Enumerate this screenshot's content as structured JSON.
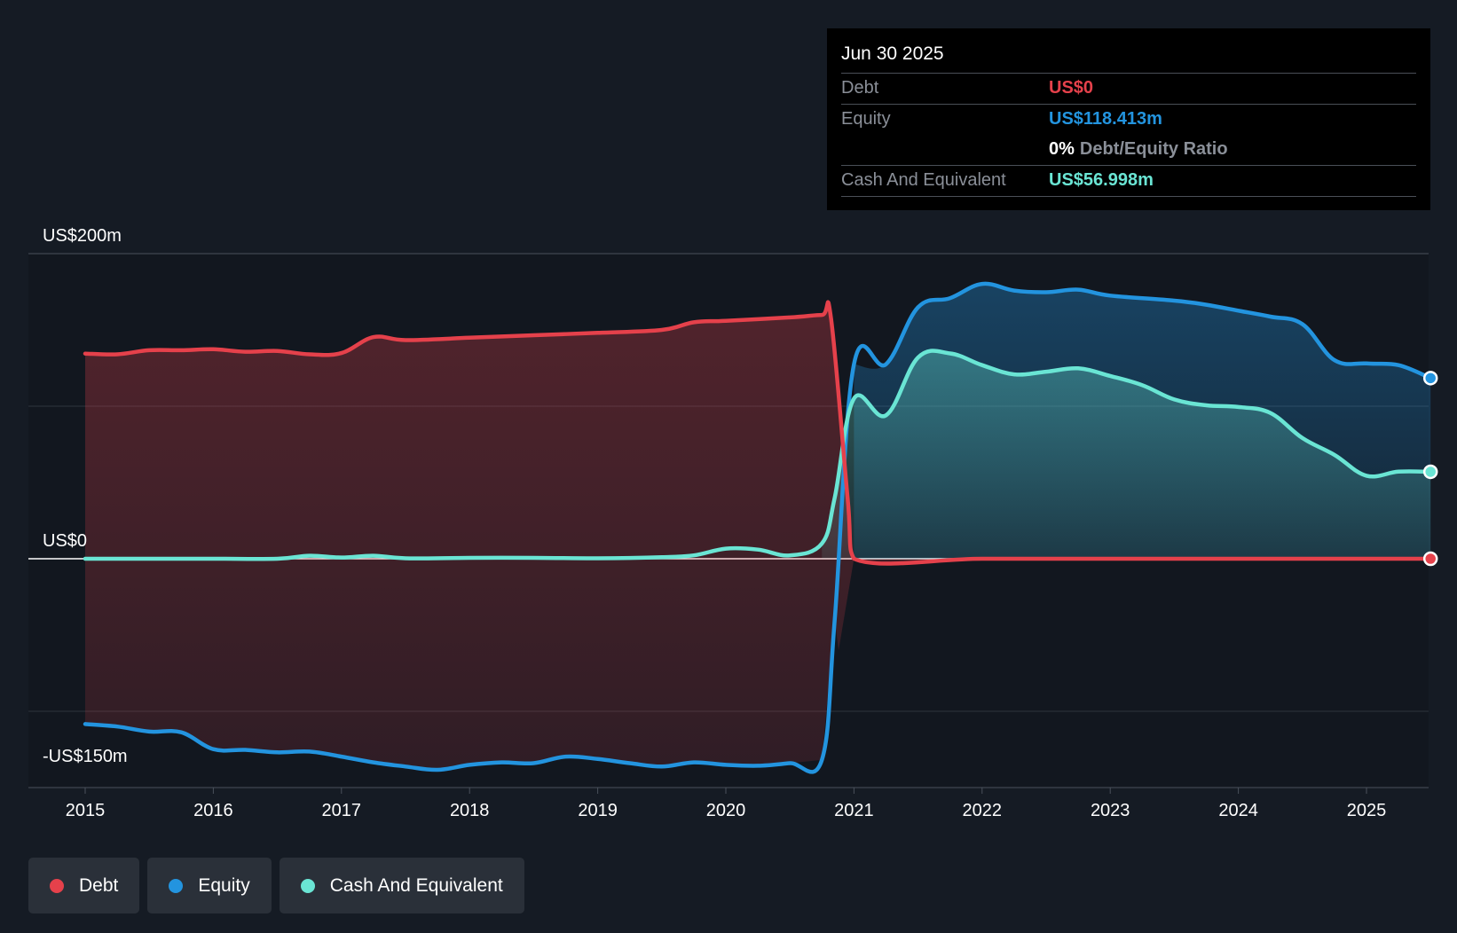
{
  "tooltip": {
    "date": "Jun 30 2025",
    "debt_label": "Debt",
    "debt_value": "US$0",
    "equity_label": "Equity",
    "equity_value": "US$118.413m",
    "ratio_pct": "0%",
    "ratio_label": "Debt/Equity Ratio",
    "cash_label": "Cash And Equivalent",
    "cash_value": "US$56.998m"
  },
  "legend": {
    "debt": "Debt",
    "equity": "Equity",
    "cash": "Cash And Equivalent"
  },
  "colors": {
    "debt": "#e5414b",
    "equity": "#2394df",
    "cash": "#6ae5d4",
    "background": "#151b24"
  },
  "chart_data": {
    "type": "area",
    "title": "",
    "xlabel": "",
    "ylabel": "",
    "ylim": [
      -150,
      200
    ],
    "y_ticks": [
      {
        "value": 200,
        "label": "US$200m"
      },
      {
        "value": 0,
        "label": "US$0"
      },
      {
        "value": -150,
        "label": "-US$150m"
      }
    ],
    "x_ticks": [
      2015,
      2016,
      2017,
      2018,
      2019,
      2020,
      2021,
      2022,
      2023,
      2024,
      2025
    ],
    "xlim": [
      2014.55,
      2025.5
    ],
    "series": [
      {
        "name": "Debt",
        "key": "debt",
        "points": [
          [
            2015.0,
            134.5
          ],
          [
            2015.25,
            134
          ],
          [
            2015.5,
            136.7
          ],
          [
            2015.75,
            136.7
          ],
          [
            2016.0,
            137.3
          ],
          [
            2016.25,
            135.7
          ],
          [
            2016.5,
            136.2
          ],
          [
            2016.75,
            134
          ],
          [
            2017.0,
            134.8
          ],
          [
            2017.25,
            145.3
          ],
          [
            2017.5,
            143.3
          ],
          [
            2018.0,
            144.9
          ],
          [
            2018.5,
            146.5
          ],
          [
            2019.0,
            148.1
          ],
          [
            2019.5,
            150
          ],
          [
            2019.75,
            155
          ],
          [
            2020.0,
            156
          ],
          [
            2020.5,
            158.2
          ],
          [
            2020.75,
            159.8
          ],
          [
            2020.82,
            158.2
          ],
          [
            2020.95,
            40
          ],
          [
            2021.0,
            0
          ],
          [
            2022.0,
            0
          ],
          [
            2023.0,
            0
          ],
          [
            2024.0,
            0
          ],
          [
            2025.0,
            0
          ],
          [
            2025.5,
            0
          ]
        ]
      },
      {
        "name": "Equity",
        "key": "equity",
        "points": [
          [
            2015.0,
            -108.4
          ],
          [
            2015.25,
            -110
          ],
          [
            2015.5,
            -113.3
          ],
          [
            2015.75,
            -113.8
          ],
          [
            2016.0,
            -124.8
          ],
          [
            2016.25,
            -125.3
          ],
          [
            2016.5,
            -126.9
          ],
          [
            2016.75,
            -126.4
          ],
          [
            2017.0,
            -129.7
          ],
          [
            2017.25,
            -133.5
          ],
          [
            2017.5,
            -136.2
          ],
          [
            2017.75,
            -138.4
          ],
          [
            2018.0,
            -135.1
          ],
          [
            2018.25,
            -133.5
          ],
          [
            2018.5,
            -134
          ],
          [
            2018.75,
            -129.7
          ],
          [
            2019.0,
            -131.3
          ],
          [
            2019.25,
            -134
          ],
          [
            2019.5,
            -136.2
          ],
          [
            2019.75,
            -133.5
          ],
          [
            2020.0,
            -135.1
          ],
          [
            2020.25,
            -135.7
          ],
          [
            2020.5,
            -134
          ],
          [
            2020.75,
            -131.8
          ],
          [
            2020.85,
            -40
          ],
          [
            2021.0,
            127.5
          ],
          [
            2021.25,
            127.5
          ],
          [
            2021.5,
            164.8
          ],
          [
            2021.75,
            170.8
          ],
          [
            2022.0,
            180.2
          ],
          [
            2022.25,
            175.8
          ],
          [
            2022.5,
            174.7
          ],
          [
            2022.75,
            176.4
          ],
          [
            2023.0,
            172.5
          ],
          [
            2023.5,
            169.2
          ],
          [
            2023.75,
            166.5
          ],
          [
            2024.0,
            162.6
          ],
          [
            2024.25,
            158.7
          ],
          [
            2024.5,
            153.8
          ],
          [
            2024.75,
            130.2
          ],
          [
            2025.0,
            128
          ],
          [
            2025.25,
            126.9
          ],
          [
            2025.5,
            118.413
          ]
        ]
      },
      {
        "name": "Cash And Equivalent",
        "key": "cash",
        "points": [
          [
            2015.0,
            0
          ],
          [
            2015.5,
            0
          ],
          [
            2016.0,
            0
          ],
          [
            2016.5,
            0
          ],
          [
            2016.75,
            2
          ],
          [
            2017.0,
            0.8
          ],
          [
            2017.25,
            2
          ],
          [
            2017.5,
            0.3
          ],
          [
            2018.0,
            0.6
          ],
          [
            2018.5,
            0.6
          ],
          [
            2019.0,
            0.3
          ],
          [
            2019.5,
            1
          ],
          [
            2019.75,
            2.2
          ],
          [
            2020.0,
            6.6
          ],
          [
            2020.25,
            6
          ],
          [
            2020.5,
            2.2
          ],
          [
            2020.75,
            10
          ],
          [
            2020.85,
            40
          ],
          [
            2021.0,
            105
          ],
          [
            2021.25,
            94
          ],
          [
            2021.5,
            131.9
          ],
          [
            2021.75,
            134.6
          ],
          [
            2022.0,
            126.9
          ],
          [
            2022.25,
            120.9
          ],
          [
            2022.5,
            122.6
          ],
          [
            2022.75,
            124.8
          ],
          [
            2023.0,
            119.8
          ],
          [
            2023.25,
            113.8
          ],
          [
            2023.5,
            104.4
          ],
          [
            2023.75,
            100.6
          ],
          [
            2024.0,
            99.5
          ],
          [
            2024.25,
            95.6
          ],
          [
            2024.5,
            79.1
          ],
          [
            2024.75,
            68.1
          ],
          [
            2025.0,
            54.4
          ],
          [
            2025.25,
            57.1
          ],
          [
            2025.5,
            56.998
          ]
        ]
      }
    ]
  }
}
